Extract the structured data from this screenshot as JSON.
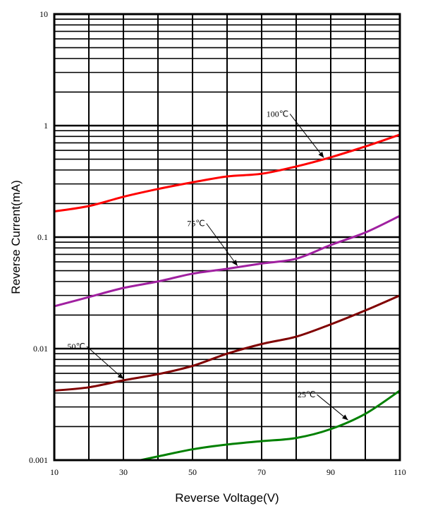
{
  "chart_data": {
    "type": "line",
    "xlabel": "Reverse Voltage(V)",
    "ylabel": "Reverse Current(mA)",
    "xlim": [
      10,
      110
    ],
    "ylim": [
      0.001,
      10
    ],
    "yscale": "log",
    "grid": true,
    "x_ticks": [
      "10",
      "30",
      "50",
      "70",
      "90",
      "110"
    ],
    "y_ticks": [
      "0.001",
      "0.01",
      "0.1",
      "1",
      "10"
    ],
    "series": [
      {
        "name": "100℃",
        "color": "#ff0000",
        "x": [
          10,
          20,
          30,
          40,
          50,
          60,
          70,
          80,
          90,
          100,
          110
        ],
        "y": [
          0.17,
          0.19,
          0.23,
          0.27,
          0.31,
          0.35,
          0.37,
          0.43,
          0.52,
          0.65,
          0.83
        ]
      },
      {
        "name": "75℃",
        "color": "#a020a0",
        "x": [
          10,
          20,
          30,
          40,
          50,
          60,
          70,
          80,
          90,
          100,
          110
        ],
        "y": [
          0.024,
          0.029,
          0.035,
          0.04,
          0.047,
          0.052,
          0.058,
          0.064,
          0.085,
          0.11,
          0.155
        ]
      },
      {
        "name": "50℃",
        "color": "#800000",
        "x": [
          10,
          20,
          30,
          40,
          50,
          60,
          70,
          80,
          90,
          100,
          110
        ],
        "y": [
          0.0042,
          0.0045,
          0.0052,
          0.0059,
          0.007,
          0.009,
          0.011,
          0.0128,
          0.0165,
          0.022,
          0.03
        ]
      },
      {
        "name": "25℃",
        "color": "#008000",
        "x": [
          35,
          40,
          50,
          60,
          70,
          80,
          90,
          100,
          110
        ],
        "y": [
          0.001,
          0.00108,
          0.00125,
          0.00138,
          0.00148,
          0.00158,
          0.0019,
          0.0026,
          0.0042
        ]
      }
    ],
    "annotations": [
      {
        "text": "100℃",
        "series": "100℃",
        "at_x": 88
      },
      {
        "text": "75℃",
        "series": "75℃",
        "at_x": 63
      },
      {
        "text": "50℃",
        "series": "50℃",
        "at_x": 30
      },
      {
        "text": "25℃",
        "series": "25℃",
        "at_x": 95
      }
    ]
  }
}
